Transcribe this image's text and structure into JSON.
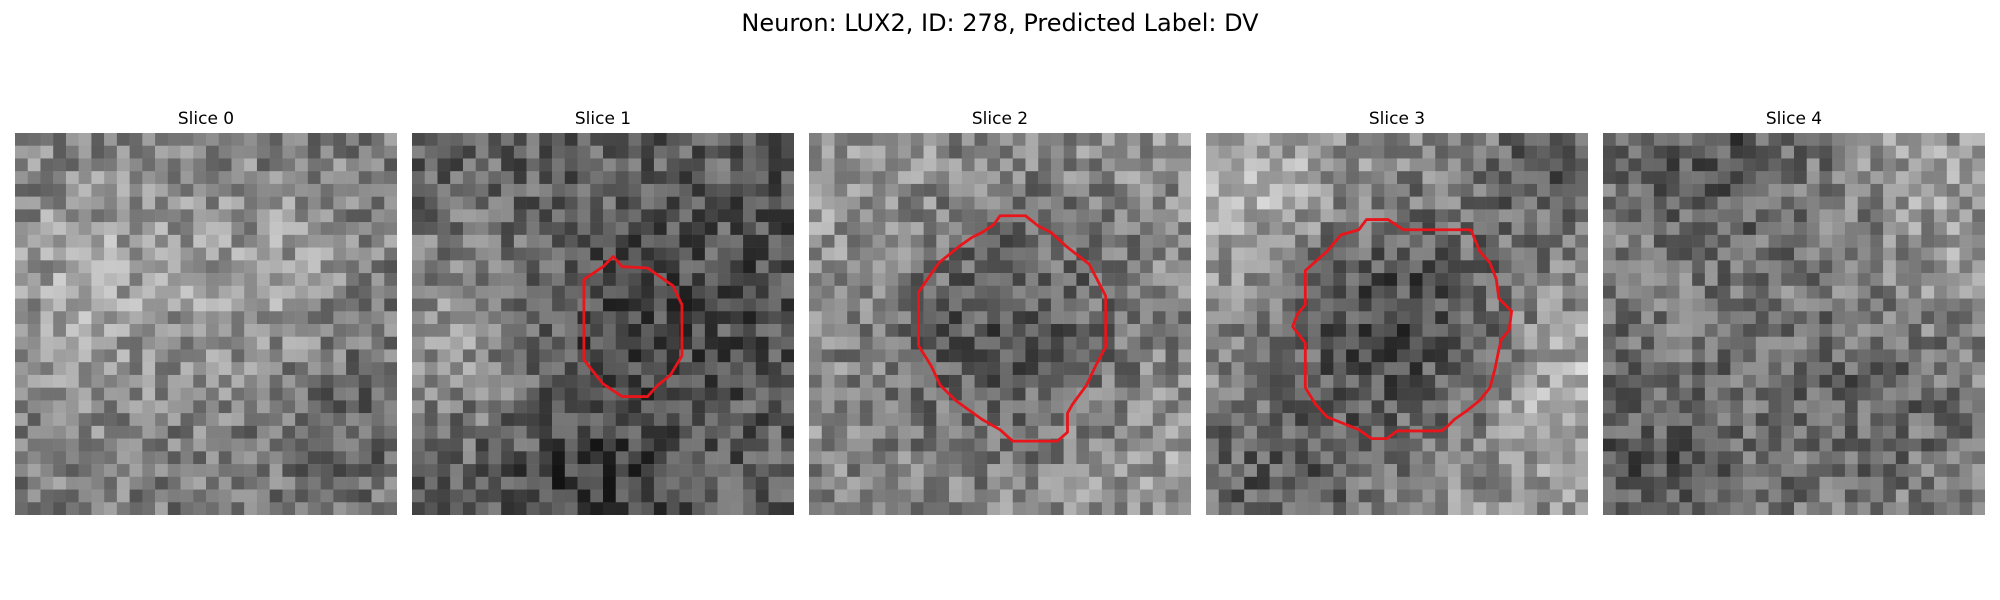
{
  "figure": {
    "title": "Neuron: LUX2, ID: 278, Predicted Label: DV"
  },
  "panels": [
    {
      "title": "Slice 0",
      "seed": 11,
      "has_contour": false
    },
    {
      "title": "Slice 1",
      "seed": 23,
      "has_contour": true
    },
    {
      "title": "Slice 2",
      "seed": 37,
      "has_contour": true
    },
    {
      "title": "Slice 3",
      "seed": 53,
      "has_contour": true
    },
    {
      "title": "Slice 4",
      "seed": 71,
      "has_contour": false
    }
  ],
  "colors": {
    "contour": "#e8151b",
    "background": "#ffffff"
  },
  "image_grid": 30
}
